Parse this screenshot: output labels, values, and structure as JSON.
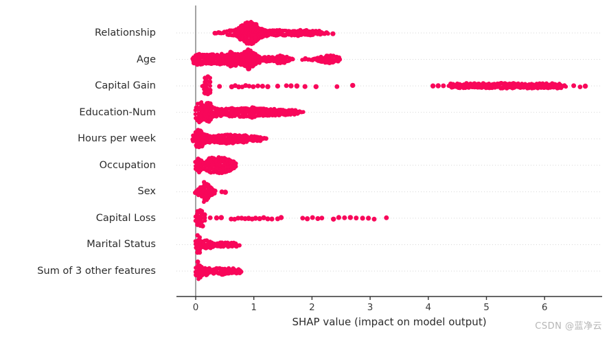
{
  "watermark": {
    "text": "CSDN @蓝净云"
  },
  "colors": {
    "dot": "#f8075a",
    "axis": "#333333",
    "zero_line": "#999999",
    "gridline": "#d6d6d6",
    "label": "#2b2b2b",
    "watermark": "#b5b5b5"
  },
  "chart_data": {
    "type": "scatter",
    "variant": "beeswarm-shap-summary",
    "title": "",
    "xlabel": "SHAP value (impact on model output)",
    "ylabel": "",
    "xticks": [
      0,
      1,
      2,
      3,
      4,
      5,
      6
    ],
    "xlim": [
      -0.33,
      6.99
    ],
    "grid": "dotted horizontal line per feature row",
    "legend": "none",
    "point_color_note": "all points single crimson color",
    "features": [
      {
        "label": "Relationship",
        "segments": [
          [
            [
              0.33,
              1.5
            ],
            [
              0.42,
              2.5
            ],
            [
              0.52,
              3.5
            ],
            [
              0.62,
              5
            ],
            [
              0.72,
              8
            ],
            [
              0.8,
              13
            ],
            [
              0.88,
              17
            ],
            [
              0.96,
              18
            ],
            [
              1.03,
              14
            ],
            [
              1.1,
              9
            ],
            [
              1.17,
              6.5
            ],
            [
              1.27,
              5
            ],
            [
              1.4,
              5
            ],
            [
              1.55,
              5.5
            ],
            [
              1.7,
              5.5
            ],
            [
              1.85,
              5
            ],
            [
              2.0,
              4.5
            ],
            [
              2.12,
              4
            ],
            [
              2.22,
              3
            ],
            [
              2.3,
              1.5
            ]
          ]
        ],
        "dots": [
          2.36
        ]
      },
      {
        "label": "Age",
        "segments": [
          [
            [
              -0.05,
              4
            ],
            [
              0.0,
              8
            ],
            [
              0.06,
              10
            ],
            [
              0.12,
              9
            ],
            [
              0.2,
              8
            ],
            [
              0.28,
              9
            ],
            [
              0.36,
              8
            ],
            [
              0.44,
              9
            ],
            [
              0.52,
              8
            ],
            [
              0.6,
              12
            ],
            [
              0.68,
              10
            ],
            [
              0.75,
              8
            ],
            [
              0.82,
              10
            ],
            [
              0.9,
              16
            ],
            [
              0.97,
              13
            ],
            [
              1.05,
              7
            ],
            [
              1.15,
              5
            ],
            [
              1.25,
              5
            ],
            [
              1.35,
              5
            ],
            [
              1.45,
              7
            ],
            [
              1.55,
              6
            ],
            [
              1.63,
              4
            ],
            [
              1.7,
              2.5
            ]
          ],
          [
            [
              1.84,
              2.5
            ],
            [
              1.95,
              3.5
            ],
            [
              2.05,
              3.5
            ],
            [
              2.15,
              4.5
            ],
            [
              2.25,
              7
            ],
            [
              2.35,
              7
            ],
            [
              2.43,
              5
            ],
            [
              2.51,
              2
            ]
          ]
        ],
        "dots": []
      },
      {
        "label": "Capital Gain",
        "segments": [
          [
            [
              0.12,
              3
            ],
            [
              0.15,
              13
            ],
            [
              0.2,
              15
            ],
            [
              0.24,
              13
            ],
            [
              0.28,
              4
            ]
          ],
          [
            [
              4.35,
              3.5
            ],
            [
              4.55,
              4.5
            ],
            [
              4.8,
              5
            ],
            [
              5.1,
              5
            ],
            [
              5.4,
              5
            ],
            [
              5.7,
              5
            ],
            [
              6.0,
              4.5
            ],
            [
              6.25,
              4
            ],
            [
              6.4,
              2.5
            ]
          ]
        ],
        "dots": [
          0.41,
          0.62,
          0.68,
          0.74,
          0.8,
          0.86,
          0.92,
          0.99,
          1.07,
          1.15,
          1.24,
          1.41,
          1.56,
          1.64,
          1.74,
          1.88,
          2.07,
          2.43,
          2.7,
          4.08,
          4.17,
          4.26,
          6.5,
          6.61,
          6.7
        ]
      },
      {
        "label": "Education-Num",
        "segments": [
          [
            [
              0.0,
              10
            ],
            [
              0.04,
              15
            ],
            [
              0.09,
              16
            ],
            [
              0.14,
              9
            ],
            [
              0.19,
              15
            ],
            [
              0.25,
              14
            ],
            [
              0.3,
              8
            ],
            [
              0.38,
              6
            ],
            [
              0.48,
              6
            ],
            [
              0.58,
              7
            ],
            [
              0.68,
              7
            ],
            [
              0.78,
              8
            ],
            [
              0.88,
              7
            ],
            [
              0.98,
              9
            ],
            [
              1.08,
              7
            ],
            [
              1.18,
              6
            ],
            [
              1.3,
              6
            ],
            [
              1.45,
              6
            ],
            [
              1.6,
              5
            ],
            [
              1.72,
              4
            ],
            [
              1.82,
              2.5
            ],
            [
              1.87,
              1.5
            ]
          ]
        ],
        "dots": []
      },
      {
        "label": "Hours per week",
        "segments": [
          [
            [
              -0.04,
              6
            ],
            [
              0.0,
              12
            ],
            [
              0.05,
              15
            ],
            [
              0.1,
              13
            ],
            [
              0.16,
              8
            ],
            [
              0.25,
              6
            ],
            [
              0.35,
              6
            ],
            [
              0.45,
              7
            ],
            [
              0.55,
              8
            ],
            [
              0.65,
              8
            ],
            [
              0.75,
              7
            ],
            [
              0.85,
              6
            ],
            [
              0.95,
              5
            ],
            [
              1.08,
              4
            ],
            [
              1.18,
              3
            ],
            [
              1.24,
              1.5
            ]
          ]
        ],
        "dots": []
      },
      {
        "label": "Occupation",
        "segments": [
          [
            [
              0.0,
              8
            ],
            [
              0.05,
              11
            ],
            [
              0.1,
              9
            ],
            [
              0.14,
              6
            ],
            [
              0.2,
              9
            ],
            [
              0.27,
              13
            ],
            [
              0.33,
              11
            ],
            [
              0.4,
              13
            ],
            [
              0.47,
              12
            ],
            [
              0.53,
              11
            ],
            [
              0.6,
              9
            ],
            [
              0.66,
              6
            ],
            [
              0.71,
              3
            ]
          ]
        ],
        "dots": []
      },
      {
        "label": "Sex",
        "segments": [
          [
            [
              0.0,
              4
            ],
            [
              0.05,
              7
            ],
            [
              0.1,
              9
            ],
            [
              0.14,
              17
            ],
            [
              0.19,
              14
            ],
            [
              0.25,
              8
            ],
            [
              0.3,
              5
            ],
            [
              0.35,
              2.5
            ]
          ]
        ],
        "dots": [
          0.45,
          0.51
        ]
      },
      {
        "label": "Capital Loss",
        "segments": [
          [
            [
              0.0,
              5
            ],
            [
              0.03,
              13
            ],
            [
              0.07,
              15
            ],
            [
              0.11,
              13
            ],
            [
              0.15,
              6
            ],
            [
              0.18,
              2.5
            ]
          ]
        ],
        "dots": [
          0.25,
          0.36,
          0.44,
          0.61,
          0.67,
          0.73,
          0.79,
          0.85,
          0.91,
          0.97,
          1.03,
          1.1,
          1.17,
          1.24,
          1.31,
          1.41,
          1.47,
          1.84,
          1.92,
          2.01,
          2.1,
          2.17,
          2.37,
          2.46,
          2.56,
          2.66,
          2.76,
          2.87,
          2.97,
          3.07,
          3.28
        ]
      },
      {
        "label": "Marital Status",
        "segments": [
          [
            [
              0.0,
              7
            ],
            [
              0.04,
              15
            ],
            [
              0.08,
              14
            ],
            [
              0.12,
              7
            ],
            [
              0.17,
              8
            ],
            [
              0.22,
              7
            ],
            [
              0.28,
              5
            ],
            [
              0.35,
              4
            ],
            [
              0.45,
              4
            ],
            [
              0.55,
              4
            ],
            [
              0.65,
              4
            ],
            [
              0.72,
              3.5
            ],
            [
              0.78,
              2
            ]
          ]
        ],
        "dots": []
      },
      {
        "label": "Sum of 3 other features",
        "segments": [
          [
            [
              0.0,
              8
            ],
            [
              0.04,
              15
            ],
            [
              0.08,
              11
            ],
            [
              0.13,
              6
            ],
            [
              0.18,
              7
            ],
            [
              0.25,
              5
            ],
            [
              0.33,
              5
            ],
            [
              0.42,
              6
            ],
            [
              0.5,
              6
            ],
            [
              0.6,
              5
            ],
            [
              0.68,
              4.5
            ],
            [
              0.76,
              4
            ],
            [
              0.82,
              2
            ]
          ]
        ],
        "dots": []
      }
    ]
  }
}
